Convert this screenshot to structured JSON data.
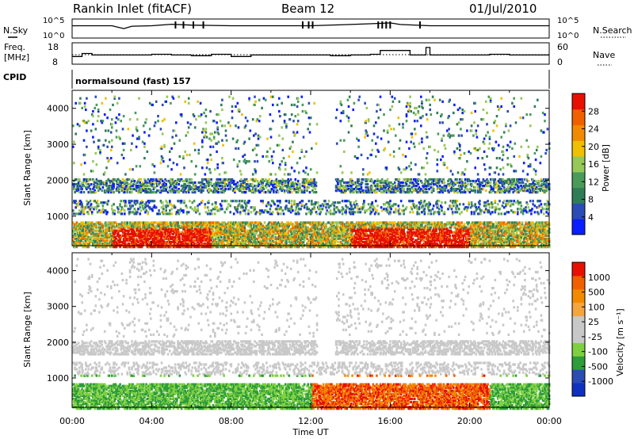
{
  "header": {
    "title": "Rankin Inlet (fitACF)",
    "beam": "Beam 12",
    "date": "01/Jul/2010"
  },
  "summary_panels": {
    "noise_left_label": "N.Sky",
    "noise_right_label": "N.Search",
    "noise_ticks_left": [
      "10^5",
      "10^0"
    ],
    "noise_ticks_right": [
      "10^5",
      "10^0"
    ],
    "freq_label_top": "Freq.",
    "freq_label_unit": "[MHz]",
    "freq_ticks": [
      "18",
      "8"
    ],
    "nave_ticks": [
      "60",
      "0"
    ],
    "nave_label": "Nave",
    "cpid_label": "CPID",
    "cpid_text": "normalsound (fast) 157"
  },
  "colors": {
    "power_scale": [
      "#0a1eff",
      "#2b4bb5",
      "#2e7d57",
      "#4a9a5a",
      "#95c857",
      "#f0c000",
      "#f28a00",
      "#f06000",
      "#e81000"
    ],
    "velocity_scale": [
      "#e81000",
      "#f06000",
      "#f28a00",
      "#f5a540",
      "#c8c8c8",
      "#c8c8c8",
      "#7fd040",
      "#2d9c3a",
      "#2b4bb5",
      "#1030c0"
    ]
  },
  "chart_data": [
    {
      "type": "line",
      "title": "",
      "left_axis_label": "N.Sky",
      "right_axis_label": "N.Search",
      "x_range_hours": [
        0,
        24
      ],
      "y_scale": "log",
      "series": [
        {
          "name": "N.Sky",
          "x": [
            0,
            2,
            2.6,
            3,
            4,
            5,
            6,
            8,
            10,
            12,
            14,
            15.5,
            16,
            16.5,
            18,
            20,
            22,
            24
          ],
          "y": [
            3000,
            3000,
            300,
            2000,
            3000,
            10000,
            5000,
            3000,
            3000,
            3000,
            8000,
            20000,
            30000,
            8000,
            3000,
            3000,
            3000,
            3000
          ]
        }
      ]
    },
    {
      "type": "line",
      "title": "",
      "left_axis_label": "Freq. [MHz]",
      "right_axis_label": "Nave",
      "x_range_hours": [
        0,
        24
      ],
      "ylim_freq": [
        8,
        18
      ],
      "ylim_nave": [
        0,
        60
      ],
      "series": [
        {
          "name": "Freq.",
          "x": [
            0,
            0.5,
            1,
            2,
            3,
            4,
            5,
            6,
            7,
            8,
            9,
            10,
            11,
            12,
            13,
            14,
            15,
            15.5,
            16.5,
            17,
            17.5,
            17.8,
            18,
            19,
            20,
            21,
            22,
            23,
            24
          ],
          "y": [
            11,
            13,
            12,
            12,
            12,
            12.5,
            12,
            11.5,
            12.5,
            11,
            12,
            12,
            12,
            12,
            11.5,
            12,
            12.5,
            15,
            15,
            12,
            12,
            17,
            12,
            12,
            12,
            12.5,
            12,
            12,
            12
          ]
        }
      ]
    },
    {
      "type": "heatmap",
      "title": "",
      "ylabel": "Slant Range [km]",
      "xlabel": "",
      "x_ticks": [
        "00:00",
        "04:00",
        "08:00",
        "12:00",
        "16:00",
        "20:00",
        "00:00"
      ],
      "y_ticks": [
        1000,
        2000,
        3000,
        4000
      ],
      "ylim": [
        180,
        4500
      ],
      "colorbar_label": "Power [dB]",
      "colorbar_ticks": [
        4,
        8,
        12,
        16,
        20,
        24,
        28
      ],
      "colorbar_range": [
        0,
        32
      ]
    },
    {
      "type": "heatmap",
      "title": "",
      "ylabel": "Slant Range [km]",
      "xlabel": "Time UT",
      "x_ticks": [
        "00:00",
        "04:00",
        "08:00",
        "12:00",
        "16:00",
        "20:00",
        "00:00"
      ],
      "y_ticks": [
        1000,
        2000,
        3000,
        4000
      ],
      "ylim": [
        180,
        4500
      ],
      "colorbar_label": "Velocity [m s⁻¹]",
      "colorbar_ticks": [
        1000,
        500,
        100,
        25,
        -25,
        -100,
        -500,
        -1000
      ]
    }
  ]
}
